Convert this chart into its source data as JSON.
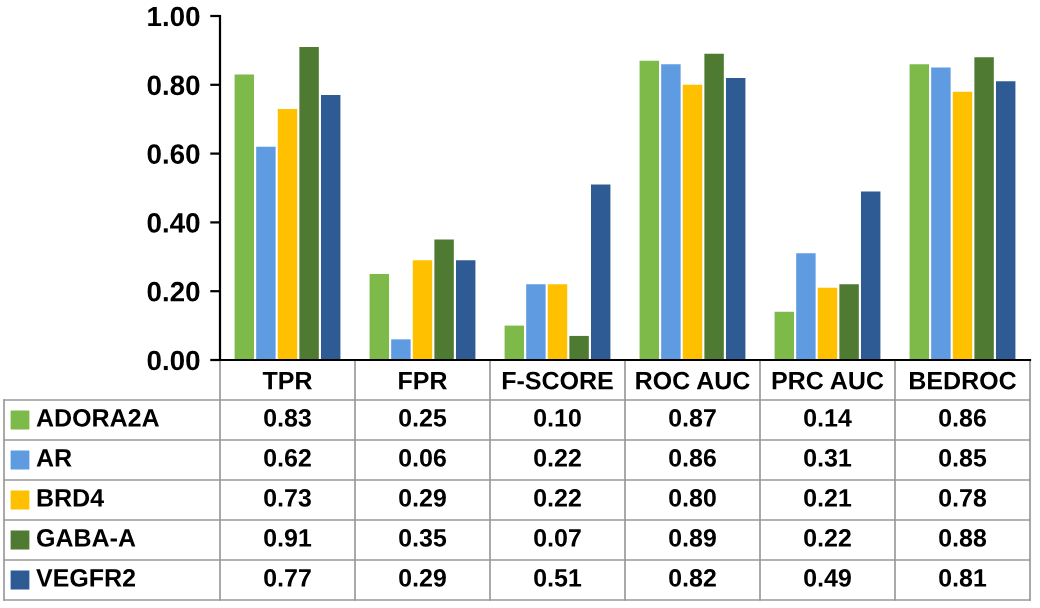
{
  "chart_data": {
    "type": "bar",
    "categories": [
      "TPR",
      "FPR",
      "F-SCORE",
      "ROC AUC",
      "PRC AUC",
      "BEDROC"
    ],
    "series": [
      {
        "name": "ADORA2A",
        "color": "#7dba4a",
        "values": [
          0.83,
          0.25,
          0.1,
          0.87,
          0.14,
          0.86
        ],
        "value_labels": [
          "0.83",
          "0.25",
          "0.10",
          "0.87",
          "0.14",
          "0.86"
        ]
      },
      {
        "name": "AR",
        "color": "#5e9be0",
        "values": [
          0.62,
          0.06,
          0.22,
          0.86,
          0.31,
          0.85
        ],
        "value_labels": [
          "0.62",
          "0.06",
          "0.22",
          "0.86",
          "0.31",
          "0.85"
        ]
      },
      {
        "name": "BRD4",
        "color": "#ffc000",
        "values": [
          0.73,
          0.29,
          0.22,
          0.8,
          0.21,
          0.78
        ],
        "value_labels": [
          "0.73",
          "0.29",
          "0.22",
          "0.80",
          "0.21",
          "0.78"
        ]
      },
      {
        "name": "GABA-A",
        "color": "#4e7a32",
        "values": [
          0.91,
          0.35,
          0.07,
          0.89,
          0.22,
          0.88
        ],
        "value_labels": [
          "0.91",
          "0.35",
          "0.07",
          "0.89",
          "0.22",
          "0.88"
        ]
      },
      {
        "name": "VEGFR2",
        "color": "#2e5b94",
        "values": [
          0.77,
          0.29,
          0.51,
          0.82,
          0.49,
          0.81
        ],
        "value_labels": [
          "0.77",
          "0.29",
          "0.51",
          "0.82",
          "0.49",
          "0.81"
        ]
      }
    ],
    "ylim": [
      0,
      1
    ],
    "yticks": [
      {
        "value": 0,
        "label": "0.00"
      },
      {
        "value": 0.2,
        "label": "0.20"
      },
      {
        "value": 0.4,
        "label": "0.40"
      },
      {
        "value": 0.6,
        "label": "0.60"
      },
      {
        "value": 0.8,
        "label": "0.80"
      },
      {
        "value": 1,
        "label": "1.00"
      }
    ],
    "grid": false,
    "legend": "bottom"
  }
}
